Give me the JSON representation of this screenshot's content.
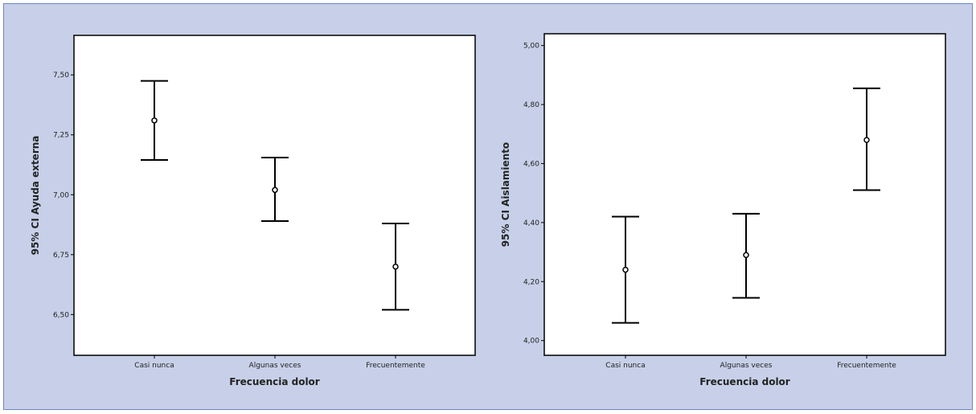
{
  "chart_data": [
    {
      "type": "errorbar",
      "xlabel": "Frecuencia dolor",
      "ylabel": "95% CI Ayuda externa",
      "categories": [
        "Casi nunca",
        "Algunas veces",
        "Frecuentemente"
      ],
      "means": [
        7.31,
        7.02,
        6.7
      ],
      "lower": [
        7.145,
        6.89,
        6.52
      ],
      "upper": [
        7.475,
        7.155,
        6.88
      ],
      "ylim": [
        6.33,
        7.665
      ],
      "yticks": [
        6.5,
        6.75,
        7.0,
        7.25,
        7.5
      ],
      "ytick_labels": [
        "6,50",
        "6,75",
        "7,00",
        "7,25",
        "7,50"
      ],
      "grid": false
    },
    {
      "type": "errorbar",
      "xlabel": "Frecuencia dolor",
      "ylabel": "95% CI Aislamiento",
      "categories": [
        "Casi nunca",
        "Algunas veces",
        "Frecuentemente"
      ],
      "means": [
        4.24,
        4.29,
        4.68
      ],
      "lower": [
        4.06,
        4.145,
        4.51
      ],
      "upper": [
        4.42,
        4.43,
        4.855
      ],
      "ylim": [
        3.95,
        5.04
      ],
      "yticks": [
        4.0,
        4.2,
        4.4,
        4.6,
        4.8,
        5.0
      ],
      "ytick_labels": [
        "4,00",
        "4,20",
        "4,40",
        "4,60",
        "4,80",
        "5,00"
      ],
      "grid": false
    }
  ]
}
